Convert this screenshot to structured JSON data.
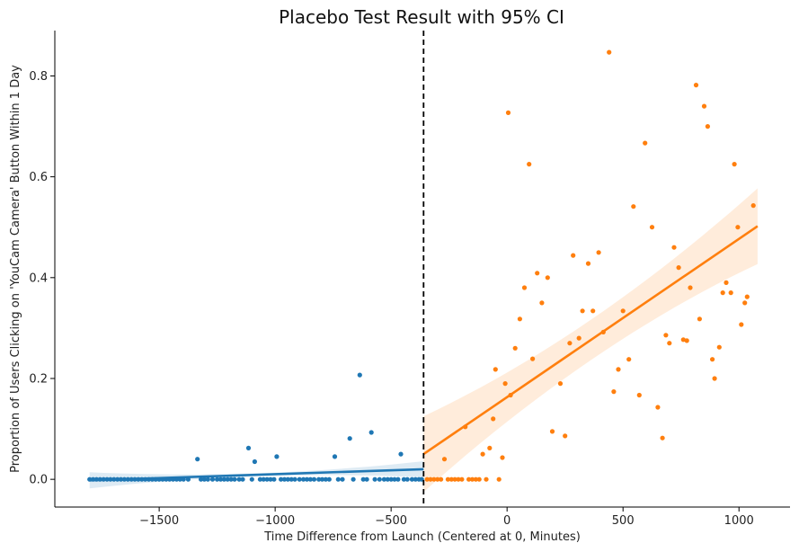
{
  "chart_data": {
    "type": "scatter",
    "title": "Placebo Test Result with 95% CI",
    "xlabel": "Time Difference from Launch (Centered at 0, Minutes)",
    "ylabel": "Proportion of Users Clicking on 'YouCam Camera' Button Within 1 Day",
    "xlim": [
      -1950,
      1220
    ],
    "ylim": [
      -0.055,
      0.89
    ],
    "xticks": [
      -1500,
      -1000,
      -500,
      0,
      500,
      1000
    ],
    "xtick_labels": [
      "−1500",
      "−1000",
      "−500",
      "0",
      "500",
      "1000"
    ],
    "yticks": [
      0.0,
      0.2,
      0.4,
      0.6,
      0.8
    ],
    "ytick_labels": [
      "0.0",
      "0.2",
      "0.4",
      "0.6",
      "0.8"
    ],
    "cutoff_x": -360,
    "grid": false,
    "colors": {
      "before": "#1f77b4",
      "after": "#ff7f0e",
      "cutoff": "#000000"
    },
    "series": [
      {
        "color": "#1f77b4",
        "points": [
          [
            -1800,
            0
          ],
          [
            -1785,
            0
          ],
          [
            -1770,
            0
          ],
          [
            -1755,
            0
          ],
          [
            -1740,
            0
          ],
          [
            -1725,
            0
          ],
          [
            -1710,
            0
          ],
          [
            -1695,
            0
          ],
          [
            -1680,
            0
          ],
          [
            -1665,
            0
          ],
          [
            -1650,
            0
          ],
          [
            -1635,
            0
          ],
          [
            -1620,
            0
          ],
          [
            -1605,
            0
          ],
          [
            -1590,
            0
          ],
          [
            -1575,
            0
          ],
          [
            -1560,
            0
          ],
          [
            -1545,
            0
          ],
          [
            -1530,
            0
          ],
          [
            -1515,
            0
          ],
          [
            -1500,
            0
          ],
          [
            -1485,
            0
          ],
          [
            -1470,
            0
          ],
          [
            -1455,
            0
          ],
          [
            -1440,
            0
          ],
          [
            -1425,
            0
          ],
          [
            -1410,
            0
          ],
          [
            -1395,
            0
          ],
          [
            -1375,
            0
          ],
          [
            -1335,
            0.04
          ],
          [
            -1320,
            0
          ],
          [
            -1305,
            0
          ],
          [
            -1290,
            0
          ],
          [
            -1270,
            0
          ],
          [
            -1250,
            0
          ],
          [
            -1235,
            0
          ],
          [
            -1220,
            0
          ],
          [
            -1205,
            0
          ],
          [
            -1190,
            0
          ],
          [
            -1175,
            0
          ],
          [
            -1155,
            0
          ],
          [
            -1140,
            0
          ],
          [
            -1115,
            0.062
          ],
          [
            -1100,
            0
          ],
          [
            -1088,
            0.035
          ],
          [
            -1065,
            0
          ],
          [
            -1050,
            0
          ],
          [
            -1035,
            0
          ],
          [
            -1020,
            0
          ],
          [
            -1005,
            0
          ],
          [
            -993,
            0.045
          ],
          [
            -975,
            0
          ],
          [
            -960,
            0
          ],
          [
            -945,
            0
          ],
          [
            -930,
            0
          ],
          [
            -915,
            0
          ],
          [
            -895,
            0
          ],
          [
            -878,
            0
          ],
          [
            -863,
            0
          ],
          [
            -848,
            0
          ],
          [
            -832,
            0
          ],
          [
            -812,
            0
          ],
          [
            -797,
            0
          ],
          [
            -782,
            0
          ],
          [
            -767,
            0
          ],
          [
            -743,
            0.045
          ],
          [
            -728,
            0
          ],
          [
            -710,
            0
          ],
          [
            -678,
            0.081
          ],
          [
            -663,
            0
          ],
          [
            -635,
            0.207
          ],
          [
            -620,
            0
          ],
          [
            -605,
            0
          ],
          [
            -585,
            0.093
          ],
          [
            -570,
            0
          ],
          [
            -550,
            0
          ],
          [
            -530,
            0
          ],
          [
            -515,
            0
          ],
          [
            -500,
            0
          ],
          [
            -485,
            0
          ],
          [
            -470,
            0
          ],
          [
            -458,
            0.05
          ],
          [
            -445,
            0
          ],
          [
            -430,
            0
          ],
          [
            -410,
            0
          ],
          [
            -395,
            0
          ],
          [
            -380,
            0
          ],
          [
            -368,
            0
          ]
        ],
        "fit": {
          "x": [
            -1800,
            -360
          ],
          "y": [
            -0.002,
            0.02
          ],
          "ci_halfwidth": [
            0.003,
            0.016
          ]
        }
      },
      {
        "color": "#ff7f0e",
        "points": [
          [
            -345,
            0
          ],
          [
            -330,
            0
          ],
          [
            -315,
            0
          ],
          [
            -300,
            0
          ],
          [
            -285,
            0
          ],
          [
            -270,
            0.04
          ],
          [
            -255,
            0
          ],
          [
            -240,
            0
          ],
          [
            -225,
            0
          ],
          [
            -210,
            0
          ],
          [
            -195,
            0
          ],
          [
            -180,
            0.104
          ],
          [
            -165,
            0
          ],
          [
            -150,
            0
          ],
          [
            -135,
            0
          ],
          [
            -120,
            0
          ],
          [
            -105,
            0.05
          ],
          [
            -90,
            0
          ],
          [
            -75,
            0.062
          ],
          [
            -60,
            0.12
          ],
          [
            -50,
            0.218
          ],
          [
            -35,
            0
          ],
          [
            -20,
            0.043
          ],
          [
            -8,
            0.19
          ],
          [
            5,
            0.727
          ],
          [
            15,
            0.167
          ],
          [
            35,
            0.26
          ],
          [
            55,
            0.318
          ],
          [
            75,
            0.38
          ],
          [
            95,
            0.625
          ],
          [
            110,
            0.239
          ],
          [
            130,
            0.409
          ],
          [
            150,
            0.35
          ],
          [
            175,
            0.4
          ],
          [
            195,
            0.095
          ],
          [
            230,
            0.19
          ],
          [
            250,
            0.086
          ],
          [
            270,
            0.27
          ],
          [
            285,
            0.444
          ],
          [
            310,
            0.28
          ],
          [
            325,
            0.334
          ],
          [
            350,
            0.428
          ],
          [
            370,
            0.334
          ],
          [
            395,
            0.45
          ],
          [
            415,
            0.292
          ],
          [
            440,
            0.847
          ],
          [
            460,
            0.174
          ],
          [
            480,
            0.218
          ],
          [
            500,
            0.334
          ],
          [
            525,
            0.238
          ],
          [
            545,
            0.541
          ],
          [
            570,
            0.167
          ],
          [
            595,
            0.667
          ],
          [
            625,
            0.5
          ],
          [
            650,
            0.143
          ],
          [
            670,
            0.082
          ],
          [
            685,
            0.286
          ],
          [
            700,
            0.27
          ],
          [
            720,
            0.46
          ],
          [
            740,
            0.42
          ],
          [
            760,
            0.277
          ],
          [
            775,
            0.275
          ],
          [
            790,
            0.38
          ],
          [
            815,
            0.782
          ],
          [
            830,
            0.318
          ],
          [
            850,
            0.74
          ],
          [
            865,
            0.7
          ],
          [
            885,
            0.238
          ],
          [
            895,
            0.2
          ],
          [
            915,
            0.262
          ],
          [
            930,
            0.37
          ],
          [
            945,
            0.39
          ],
          [
            965,
            0.37
          ],
          [
            980,
            0.625
          ],
          [
            995,
            0.5
          ],
          [
            1010,
            0.307
          ],
          [
            1025,
            0.35
          ],
          [
            1035,
            0.362
          ],
          [
            1062,
            0.543
          ]
        ],
        "fit": {
          "x": [
            -360,
            1080
          ],
          "y": [
            0.05,
            0.502
          ],
          "ci_halfwidth": [
            0.04,
            0.075
          ]
        }
      }
    ]
  }
}
